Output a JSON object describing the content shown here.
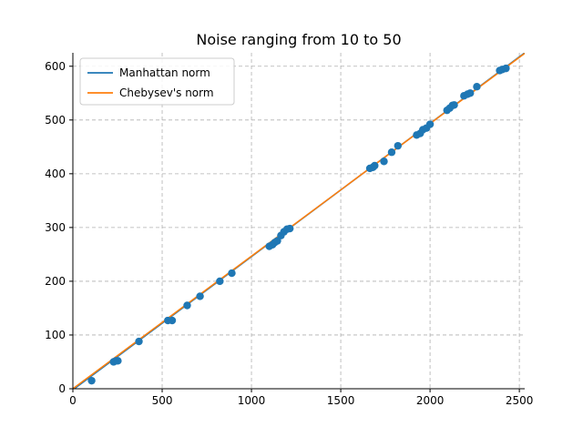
{
  "chart_data": {
    "type": "scatter",
    "title": "Noise ranging from 10 to 50",
    "xlabel": "",
    "ylabel": "",
    "xlim": [
      0,
      2530
    ],
    "ylim": [
      0,
      625
    ],
    "xticks": [
      0,
      500,
      1000,
      1500,
      2000,
      2500
    ],
    "yticks": [
      0,
      100,
      200,
      300,
      400,
      500,
      600
    ],
    "grid": true,
    "legend_position": "top-left",
    "points": {
      "color": "#1f77b4",
      "x": [
        105,
        228,
        242,
        252,
        370,
        532,
        556,
        640,
        712,
        823,
        890,
        1100,
        1118,
        1130,
        1145,
        1165,
        1182,
        1200,
        1215,
        1663,
        1680,
        1690,
        1742,
        1785,
        1820,
        1925,
        1945,
        1960,
        1980,
        2000,
        2095,
        2110,
        2125,
        2135,
        2190,
        2210,
        2225,
        2262,
        2390,
        2405,
        2425
      ],
      "y": [
        15,
        50,
        52,
        52,
        88,
        127,
        127,
        155,
        172,
        200,
        215,
        265,
        268,
        272,
        275,
        285,
        292,
        297,
        298,
        410,
        412,
        415,
        423,
        440,
        452,
        472,
        475,
        482,
        485,
        492,
        518,
        522,
        527,
        528,
        545,
        548,
        550,
        562,
        592,
        594,
        596
      ]
    },
    "series": [
      {
        "name": "Manhattan norm",
        "color": "#1f77b4",
        "x": [
          0,
          2530
        ],
        "y": [
          -2,
          625
        ]
      },
      {
        "name": "Chebysev's norm",
        "color": "#ff7f0e",
        "x": [
          0,
          2530
        ],
        "y": [
          0,
          624
        ]
      }
    ]
  }
}
